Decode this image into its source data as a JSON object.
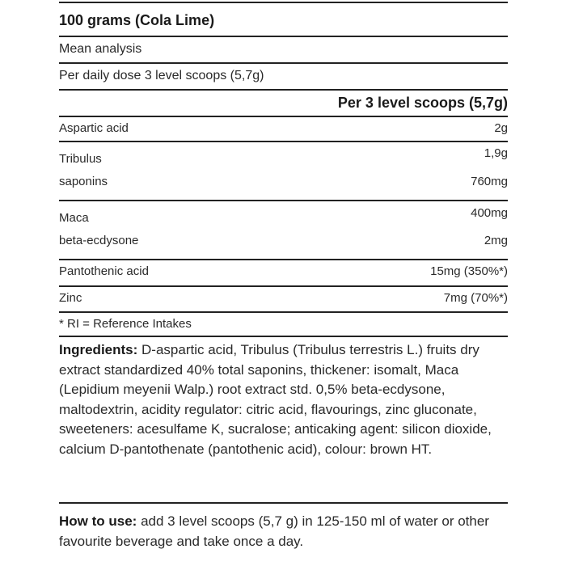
{
  "title": "100 grams (Cola Lime)",
  "mean_analysis": "Mean analysis",
  "daily_dose": "Per daily dose 3 level scoops (5,7g)",
  "column_header": "Per 3 level scoops (5,7g)",
  "rows": [
    {
      "name": "Aspartic acid",
      "value": "2g"
    },
    {
      "name": "Tribulus",
      "value": "1,9g"
    },
    {
      "name": "saponins",
      "value": "760mg"
    },
    {
      "name": "Maca",
      "value": "400mg"
    },
    {
      "name": "beta-ecdysone",
      "value": "2mg"
    },
    {
      "name": "Pantothenic acid",
      "value": "15mg (350%*)"
    },
    {
      "name": "Zinc",
      "value": "7mg (70%*)"
    }
  ],
  "footnote": "* RI = Reference Intakes",
  "ingredients": {
    "label": "Ingredients:",
    "text": " D-aspartic acid, Tribulus (Tribulus terrestris L.) fruits dry extract standardized 40% total saponins, thickener: isomalt, Maca (Lepidium meyenii Walp.) root extract std. 0,5% beta-ecdysone, maltodextrin, acidity regulator: citric acid, flavourings, zinc gluconate, sweeteners: acesulfame K, sucralose; anticaking agent: silicon dioxide, calcium D-pantothenate (pantothenic acid), colour: brown HT."
  },
  "how_to_use": {
    "label": "How to use:",
    "text": " add 3 level scoops (5,7 g) in 125-150 ml of water or other favourite beverage and take once a day."
  }
}
